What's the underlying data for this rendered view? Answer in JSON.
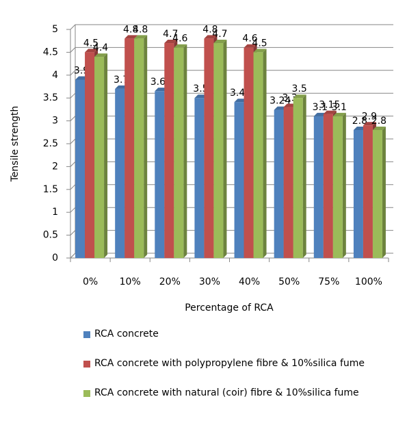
{
  "chart_data": {
    "type": "bar",
    "y_label": "Tensile strength",
    "x_label": "Percentage of RCA",
    "categories": [
      "0%",
      "10%",
      "20%",
      "30%",
      "40%",
      "50%",
      "75%",
      "100%"
    ],
    "series": [
      {
        "name": "RCA concrete",
        "color": "#4f81bd",
        "values": [
          3.9,
          3.7,
          3.65,
          3.5,
          3.41,
          3.24,
          3.1,
          2.8
        ]
      },
      {
        "name": "RCA concrete with polypropylene fibre & 10%silica fume",
        "color": "#c0504d",
        "values": [
          4.5,
          4.8,
          4.7,
          4.8,
          4.6,
          3.3,
          3.15,
          2.9
        ]
      },
      {
        "name": "RCA concrete with natural (coir) fibre & 10%silica fume",
        "color": "#9bbb59",
        "values": [
          4.4,
          4.8,
          4.6,
          4.7,
          4.5,
          3.5,
          3.1,
          2.8
        ]
      }
    ],
    "ylim": [
      0,
      5
    ],
    "yticks": [
      0,
      0.5,
      1,
      1.5,
      2,
      2.5,
      3,
      3.5,
      4,
      4.5,
      5
    ],
    "grid": true,
    "legend": "bottom"
  }
}
